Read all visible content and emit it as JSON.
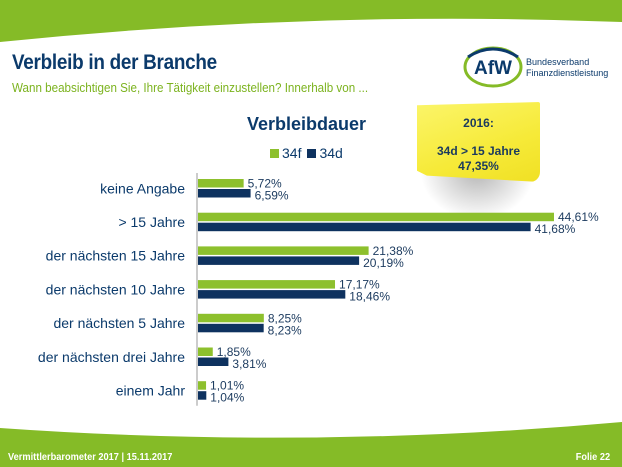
{
  "header": {
    "title": "Verbleib in der Branche",
    "subtitle": "Wann beabsichtigen Sie, Ihre Tätigkeit einzustellen? Innerhalb von ...",
    "logo": {
      "mark": "AfW",
      "line1": "Bundesverband",
      "line2": "Finanzdienstleistung"
    }
  },
  "note": {
    "year": "2016:",
    "line1": "34d > 15 Jahre",
    "line2": "47,35%"
  },
  "footer": {
    "left": "Vermittlerbarometer 2017 | 15.11.2017",
    "right": "Folie 22"
  },
  "colors": {
    "brand_green": "#85bb27",
    "brand_blue": "#0b3a6b",
    "series_34f": "#8dc02d",
    "series_34d": "#0e325f",
    "note_yellow": "#f6ea38"
  },
  "chart_data": {
    "type": "bar",
    "orientation": "horizontal",
    "title": "Verbleibdauer",
    "xlabel": "",
    "ylabel": "",
    "xlim": [
      0,
      50
    ],
    "grid": false,
    "legend": "top",
    "categories": [
      "keine Angabe",
      "> 15 Jahre",
      "der nächsten 15 Jahre",
      "der nächsten 10 Jahre",
      "der nächsten 5 Jahre",
      "der nächsten drei Jahre",
      "einem Jahr"
    ],
    "series": [
      {
        "name": "34f",
        "values": [
          5.72,
          44.61,
          21.38,
          17.17,
          8.25,
          1.85,
          1.01
        ],
        "labels": [
          "5,72%",
          "44,61%",
          "21,38%",
          "17,17%",
          "8,25%",
          "1,85%",
          "1,01%"
        ]
      },
      {
        "name": "34d",
        "values": [
          6.59,
          41.68,
          20.19,
          18.46,
          8.23,
          3.81,
          1.04
        ],
        "labels": [
          "6,59%",
          "41,68%",
          "20,19%",
          "18,46%",
          "8,23%",
          "3,81%",
          "1,04%"
        ]
      }
    ]
  }
}
